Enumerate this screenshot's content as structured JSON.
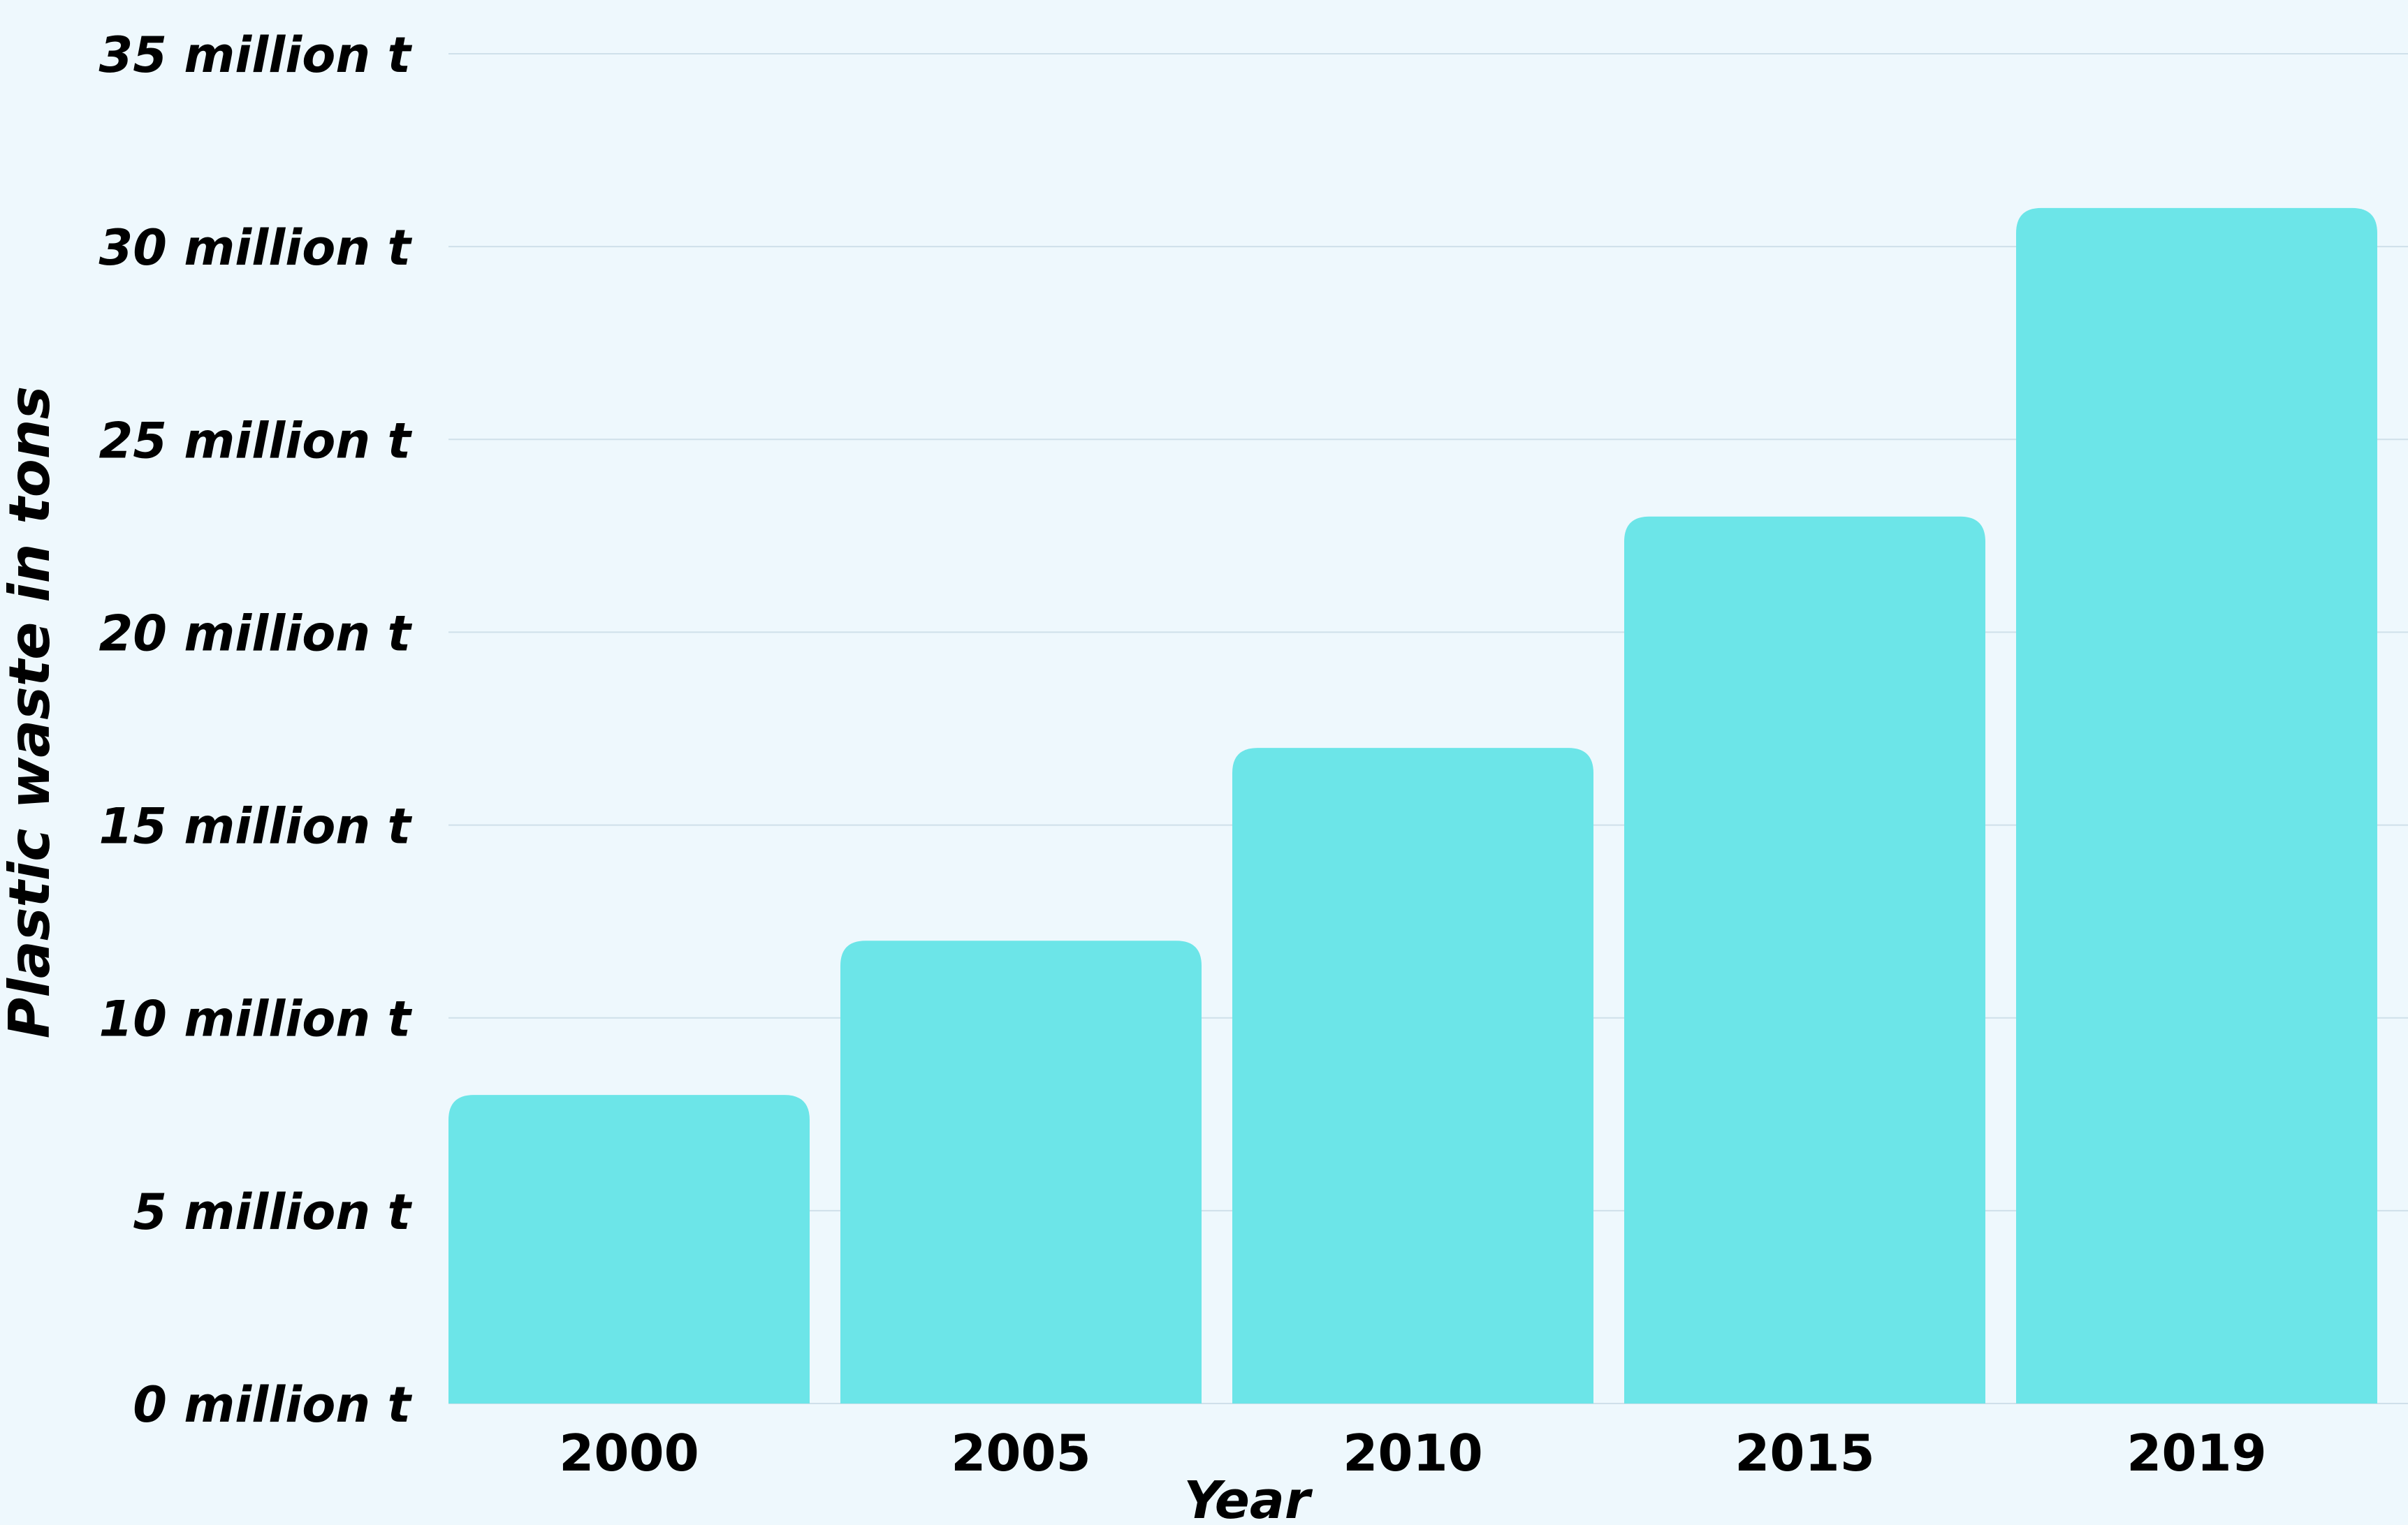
{
  "chart_data": {
    "type": "bar",
    "title": "",
    "xlabel": "Year",
    "ylabel": "Plastic waste in tons",
    "categories": [
      "2000",
      "2005",
      "2010",
      "2015",
      "2019"
    ],
    "series": [
      {
        "values": [
          8,
          12,
          17,
          23,
          31
        ]
      }
    ],
    "ylim": [
      0,
      35
    ],
    "yticks": [
      0,
      5,
      10,
      15,
      20,
      25,
      30,
      35
    ],
    "ytick_labels": [
      "0 million t",
      "5 million t",
      "10 million t",
      "15 million t",
      "20 million t",
      "25 million t",
      "30 million t",
      "35 million t"
    ],
    "grid": true,
    "legend": "none",
    "colors": {
      "background": "#eef8fd",
      "bar": "#6ce5e8",
      "grid": "#cfe0ea",
      "text": "#000000"
    }
  }
}
